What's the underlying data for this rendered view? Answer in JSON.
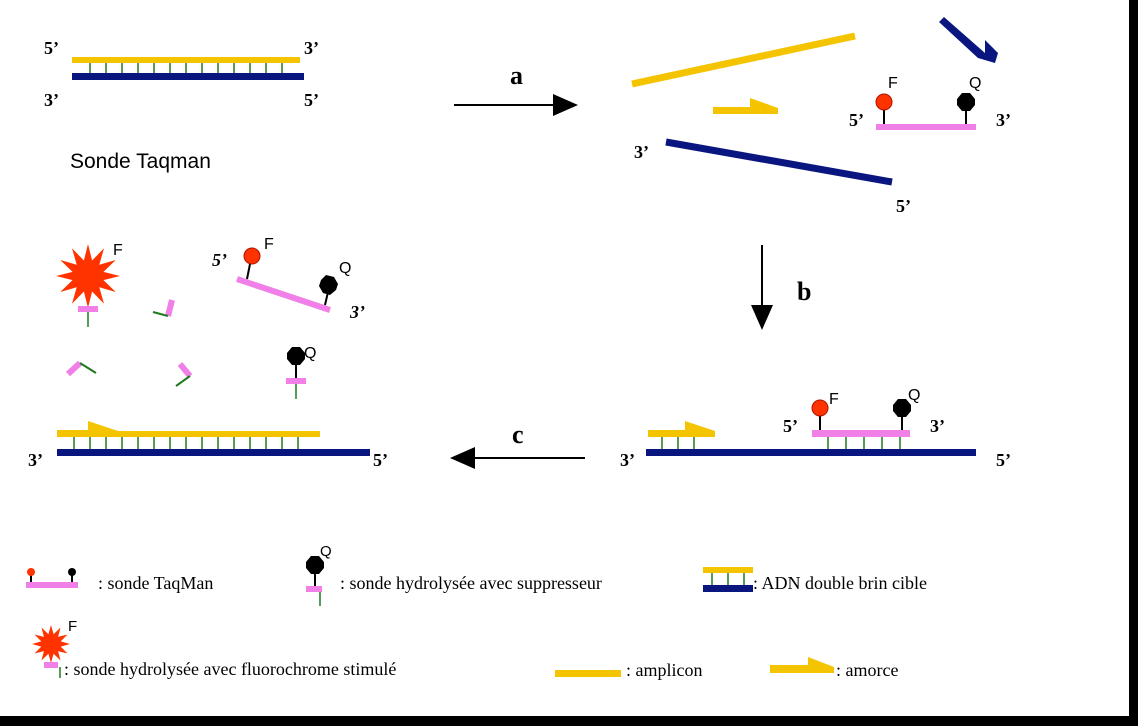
{
  "colors": {
    "amplicon": "#F5C400",
    "target": "#0A1680",
    "probe": "#F080E8",
    "rung": "#1E7A1E",
    "fluoro": "#FF3300",
    "quencher": "#000000"
  },
  "labels": {
    "p5": "5’",
    "p3": "3’",
    "F": "F",
    "Q": "Q",
    "title_left": "Sonde Taqman",
    "step_a": "a",
    "step_b": "b",
    "step_c": "c"
  },
  "legend": {
    "probe": ": sonde TaqMan",
    "hydro_quencher": ": sonde hydrolysée avec suppresseur",
    "dsDNA": ": ADN double brin cible",
    "hydro_fluoro": ": sonde hydrolysée avec fluorochrome stimulé",
    "amplicon": ": amplicon",
    "primer": ": amorce"
  }
}
